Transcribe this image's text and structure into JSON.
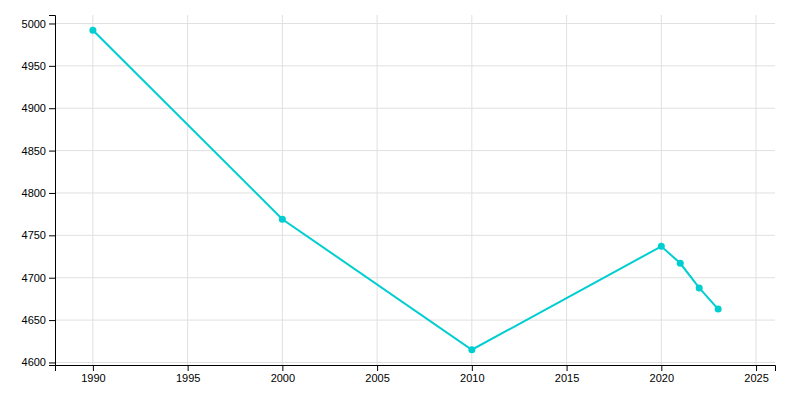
{
  "chart_data": {
    "type": "line",
    "x": [
      1990,
      2000,
      2010,
      2020,
      2021,
      2022,
      2023
    ],
    "values": [
      4992,
      4769,
      4615,
      4737,
      4717,
      4688,
      4663
    ],
    "color": "#00CED1",
    "marker": "circle",
    "xlim": [
      1988,
      2026
    ],
    "ylim": [
      4597,
      5010
    ],
    "xticks": [
      1990,
      1995,
      2000,
      2005,
      2010,
      2015,
      2020,
      2025
    ],
    "yticks": [
      4600,
      4650,
      4700,
      4750,
      4800,
      4850,
      4900,
      4950,
      5000
    ],
    "grid": true
  }
}
